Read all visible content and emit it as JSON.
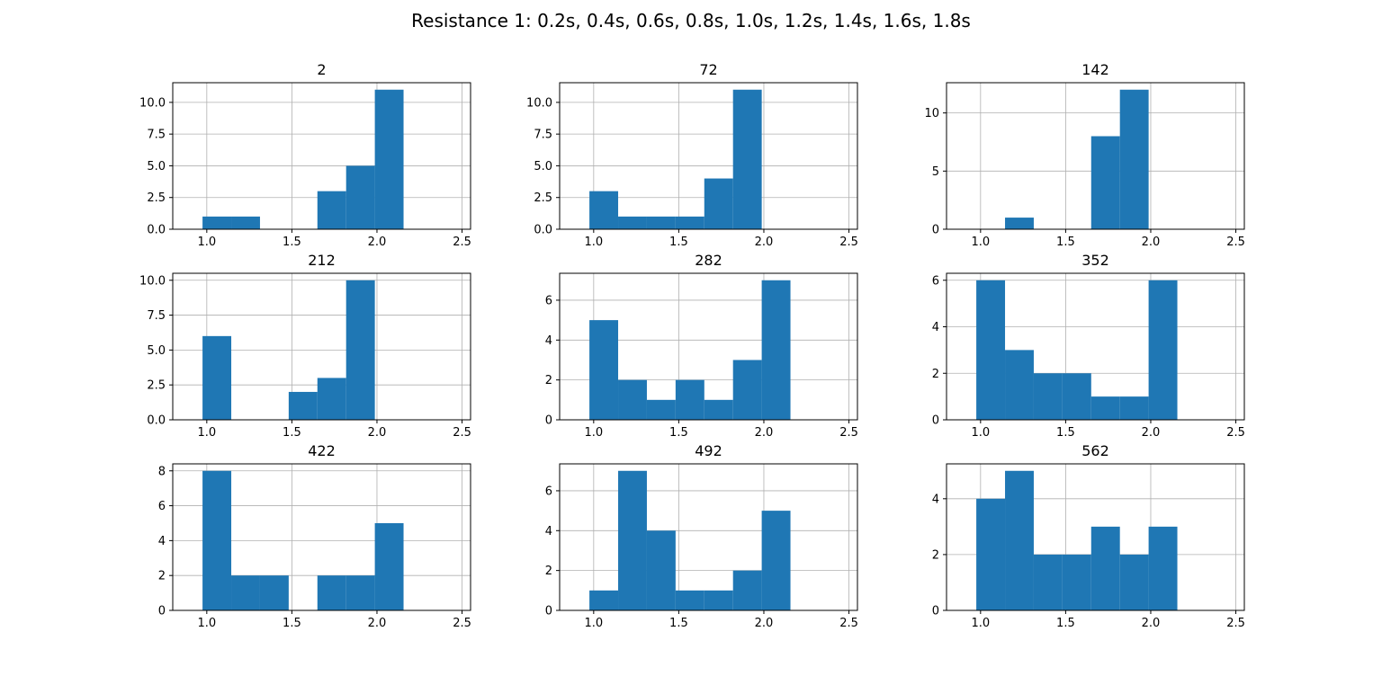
{
  "title": "Resistance 1: 0.2s, 0.4s, 0.6s, 0.8s, 1.0s, 1.2s, 1.4s, 1.6s, 1.8s",
  "colors": {
    "bar": "#1f77b4",
    "grid": "#b0b0b0",
    "axis": "#000000"
  },
  "chart_data": {
    "type": "bar",
    "layout": "3x3 grid of histograms",
    "xlim": [
      0.8,
      2.55
    ],
    "bin_width": 0.1688,
    "bins": [
      0.975,
      1.1438,
      1.3125,
      1.4813,
      1.65,
      1.8188,
      1.9875,
      2.1563
    ],
    "xticks": [
      1.0,
      1.5,
      2.0,
      2.5
    ],
    "x_tick_labels": [
      "1.0",
      "1.5",
      "2.0",
      "2.5"
    ],
    "grid": true,
    "panels": [
      {
        "title": "2",
        "ylim": [
          0,
          11.55
        ],
        "yticks": [
          0,
          2.5,
          5,
          7.5,
          10
        ],
        "y_tick_labels": [
          "0.0",
          "2.5",
          "5.0",
          "7.5",
          "10.0"
        ],
        "counts": [
          1,
          1,
          0,
          0,
          3,
          5,
          11
        ]
      },
      {
        "title": "72",
        "ylim": [
          0,
          11.55
        ],
        "yticks": [
          0,
          2.5,
          5,
          7.5,
          10
        ],
        "y_tick_labels": [
          "0.0",
          "2.5",
          "5.0",
          "7.5",
          "10.0"
        ],
        "counts": [
          3,
          1,
          1,
          1,
          4,
          11
        ]
      },
      {
        "title": "142",
        "ylim": [
          0,
          12.6
        ],
        "yticks": [
          0,
          5,
          10
        ],
        "y_tick_labels": [
          "0",
          "5",
          "10"
        ],
        "counts": [
          0,
          1,
          0,
          0,
          8,
          12
        ]
      },
      {
        "title": "212",
        "ylim": [
          0,
          10.5
        ],
        "yticks": [
          0,
          2.5,
          5,
          7.5,
          10
        ],
        "y_tick_labels": [
          "0.0",
          "2.5",
          "5.0",
          "7.5",
          "10.0"
        ],
        "counts": [
          6,
          0,
          0,
          2,
          3,
          10
        ]
      },
      {
        "title": "282",
        "ylim": [
          0,
          7.35
        ],
        "yticks": [
          0,
          2,
          4,
          6
        ],
        "y_tick_labels": [
          "0",
          "2",
          "4",
          "6"
        ],
        "counts": [
          5,
          2,
          1,
          2,
          1,
          3,
          7
        ]
      },
      {
        "title": "352",
        "ylim": [
          0,
          6.3
        ],
        "yticks": [
          0,
          2,
          4,
          6
        ],
        "y_tick_labels": [
          "0",
          "2",
          "4",
          "6"
        ],
        "counts": [
          6,
          3,
          2,
          2,
          1,
          1,
          6
        ]
      },
      {
        "title": "422",
        "ylim": [
          0,
          8.4
        ],
        "yticks": [
          0,
          2,
          4,
          6,
          8
        ],
        "y_tick_labels": [
          "0",
          "2",
          "4",
          "6",
          "8"
        ],
        "counts": [
          8,
          2,
          2,
          0,
          2,
          2,
          5
        ]
      },
      {
        "title": "492",
        "ylim": [
          0,
          7.35
        ],
        "yticks": [
          0,
          2,
          4,
          6
        ],
        "y_tick_labels": [
          "0",
          "2",
          "4",
          "6"
        ],
        "counts": [
          1,
          7,
          4,
          1,
          1,
          2,
          5
        ]
      },
      {
        "title": "562",
        "ylim": [
          0,
          5.25
        ],
        "yticks": [
          0,
          2,
          4
        ],
        "y_tick_labels": [
          "0",
          "2",
          "4"
        ],
        "counts": [
          4,
          5,
          2,
          2,
          3,
          2,
          3
        ]
      }
    ]
  }
}
